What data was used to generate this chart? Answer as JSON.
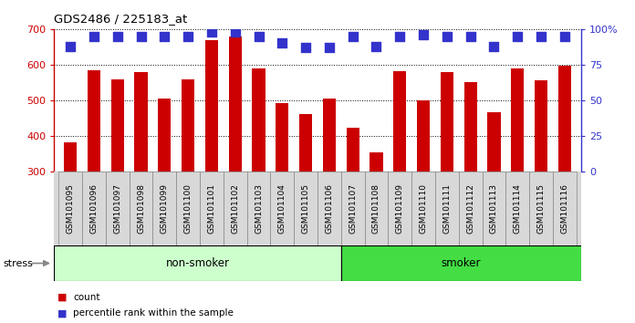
{
  "title": "GDS2486 / 225183_at",
  "categories": [
    "GSM101095",
    "GSM101096",
    "GSM101097",
    "GSM101098",
    "GSM101099",
    "GSM101100",
    "GSM101101",
    "GSM101102",
    "GSM101103",
    "GSM101104",
    "GSM101105",
    "GSM101106",
    "GSM101107",
    "GSM101108",
    "GSM101109",
    "GSM101110",
    "GSM101111",
    "GSM101112",
    "GSM101113",
    "GSM101114",
    "GSM101115",
    "GSM101116"
  ],
  "bar_values": [
    380,
    585,
    558,
    580,
    505,
    558,
    668,
    680,
    590,
    492,
    460,
    505,
    422,
    352,
    582,
    500,
    578,
    550,
    465,
    590,
    555,
    597
  ],
  "percentile_values": [
    88,
    95,
    95,
    95,
    95,
    95,
    98,
    98,
    95,
    90,
    87,
    87,
    95,
    88,
    95,
    96,
    95,
    95,
    88,
    95,
    95,
    95
  ],
  "bar_color": "#cc0000",
  "dot_color": "#3333cc",
  "ylim_left": [
    300,
    700
  ],
  "ylim_right": [
    0,
    100
  ],
  "yticks_left": [
    300,
    400,
    500,
    600,
    700
  ],
  "yticks_right": [
    0,
    25,
    50,
    75,
    100
  ],
  "non_smoker_count": 12,
  "smoker_count": 10,
  "non_smoker_color": "#ccffcc",
  "smoker_color": "#44dd44",
  "stress_label": "stress",
  "non_smoker_label": "non-smoker",
  "smoker_label": "smoker",
  "legend_count_label": "count",
  "legend_pct_label": "percentile rank within the sample",
  "background_color": "#ffffff",
  "plot_bg_color": "#ffffff",
  "grid_color": "#000000",
  "right_axis_color": "#3333cc",
  "left_axis_color": "#cc0000",
  "bar_width": 0.55,
  "dot_size": 55,
  "dot_marker": "s",
  "xtick_bg_color": "#d8d8d8",
  "xtick_border_color": "#888888"
}
